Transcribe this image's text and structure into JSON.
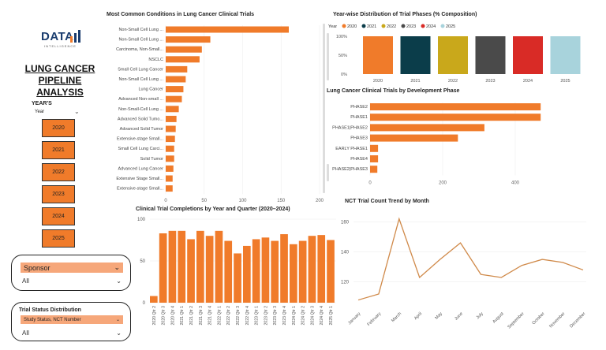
{
  "brand": {
    "logo": "DATA",
    "logo_sub": "INTELLIGENCE"
  },
  "app": {
    "title_line1": "LUNG CANCER",
    "title_line2": "PIPELINE ANALYSIS"
  },
  "years_slicer": {
    "title": "YEAR'S",
    "dropdown_label": "Year",
    "years": [
      "2020",
      "2021",
      "2022",
      "2023",
      "2024",
      "2025"
    ]
  },
  "sponsor_slicer": {
    "label": "Sponsor",
    "value": "All"
  },
  "trial_status": {
    "title": "Trial Status Distribution",
    "field": "Study Status, NCT Number",
    "value": "All"
  },
  "colors": {
    "accent": "#f07b2a"
  },
  "chart_data": [
    {
      "id": "conditions",
      "type": "bar",
      "orientation": "horizontal",
      "title": "Most Common Conditions in Lung Cancer Clinical Trials",
      "categories": [
        "Non-Small Cell Lung ...",
        "Non-Small Cell Lung ...",
        "Carcinoma, Non-Small...",
        "NSCLC",
        "Small Cell Lung Cancer",
        "Non-Small Cell Lung ...",
        "Lung Cancer",
        "Advanced Non-small ...",
        "Non-Small-Cell Lung ...",
        "Advanced Solid Tumo...",
        "Advanced Solid Tumor",
        "Extensive-stage Small...",
        "Small Cell Lung Carci...",
        "Solid Tumor",
        "Advanced Lung Cancer",
        "Extensive Stage Small...",
        "Extensive-stage Small..."
      ],
      "values": [
        160,
        58,
        47,
        44,
        28,
        26,
        23,
        21,
        17,
        14,
        13,
        12,
        11,
        11,
        10,
        9,
        9
      ],
      "xlim": [
        0,
        200
      ],
      "xticks": [
        "0",
        "50",
        "100",
        "150",
        "200"
      ]
    },
    {
      "id": "phases",
      "type": "bar",
      "title": "Year-wise Distribution of Trial Phases (% Composition)",
      "legend_title": "Year",
      "categories": [
        "2020",
        "2021",
        "2022",
        "2023",
        "2024",
        "2025"
      ],
      "values": [
        100,
        100,
        100,
        100,
        100,
        100
      ],
      "colors": [
        "#f07b2a",
        "#0b3d4a",
        "#c9a81b",
        "#4a4a4a",
        "#d92b26",
        "#a8d3dc"
      ],
      "ylim": [
        0,
        100
      ],
      "yticks": [
        "0%",
        "50%",
        "100%"
      ]
    },
    {
      "id": "dev_phase",
      "type": "bar",
      "orientation": "horizontal",
      "title": "Lung Cancer Clinical Trials by Development Phase",
      "categories": [
        "PHASE2",
        "PHASE1",
        "PHASE1|PHASE2",
        "PHASE3",
        "EARLY PHASE1",
        "PHASE4",
        "PHASE2|PHASE3"
      ],
      "values": [
        470,
        470,
        315,
        242,
        22,
        22,
        20
      ],
      "xlim": [
        0,
        500
      ],
      "xticks": [
        "0",
        "200",
        "400"
      ]
    },
    {
      "id": "completions",
      "type": "bar",
      "title": "Clinical Trial Completions by Year and Quarter (2020–2024)",
      "categories": [
        "2020 Qtr 2",
        "2020 Qtr 3",
        "2020 Qtr 4",
        "2021 Qtr 1",
        "2021 Qtr 2",
        "2021 Qtr 3",
        "2021 Qtr 4",
        "2022 Qtr 1",
        "2022 Qtr 2",
        "2022 Qtr 3",
        "2022 Qtr 4",
        "2023 Qtr 1",
        "2023 Qtr 2",
        "2023 Qtr 3",
        "2023 Qtr 4",
        "2024 Qtr 1",
        "2024 Qtr 2",
        "2024 Qtr 3",
        "2024 Qtr 4",
        "2025 Qtr 1"
      ],
      "values": [
        8,
        83,
        86,
        86,
        76,
        86,
        80,
        86,
        74,
        59,
        68,
        76,
        78,
        74,
        82,
        70,
        74,
        80,
        81,
        75
      ],
      "ylim": [
        0,
        100
      ],
      "yticks": [
        "0",
        "50",
        "100"
      ]
    },
    {
      "id": "nct_trend",
      "type": "line",
      "title": "NCT Trial Count Trend by  Month",
      "x": [
        "January",
        "February",
        "March",
        "April",
        "May",
        "June",
        "July",
        "August",
        "September",
        "October",
        "November",
        "December"
      ],
      "values": [
        108,
        112,
        162,
        123,
        135,
        146,
        125,
        123,
        131,
        135,
        133,
        128
      ],
      "ylim": [
        102,
        166
      ],
      "yticks": [
        "120",
        "140",
        "160"
      ]
    }
  ]
}
